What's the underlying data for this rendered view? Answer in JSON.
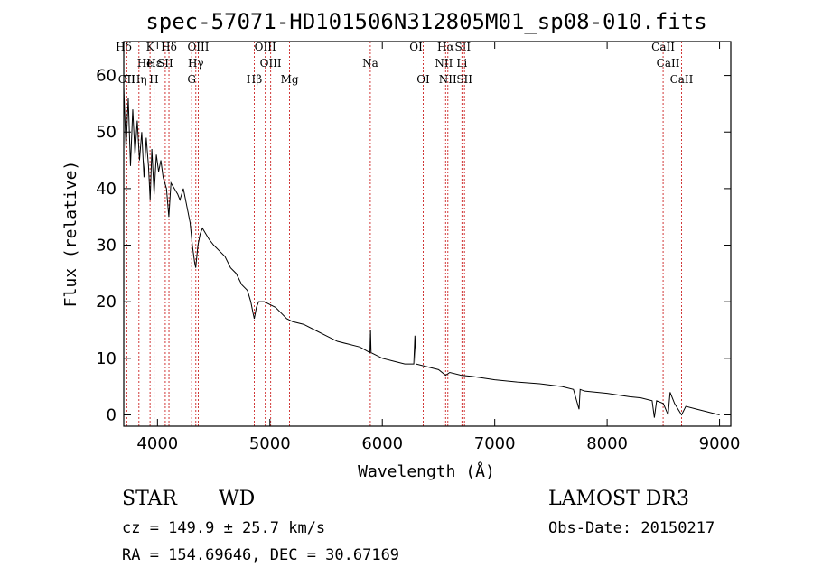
{
  "chart_data": {
    "type": "line",
    "title": "spec-57071-HD101506N312805M01_sp08-010.fits",
    "xlabel": "Wavelength (Å)",
    "ylabel": "Flux (relative)",
    "xlim": [
      3700,
      9100
    ],
    "ylim": [
      -2,
      66
    ],
    "xticks": [
      4000,
      5000,
      6000,
      7000,
      8000,
      9000
    ],
    "yticks": [
      0,
      10,
      20,
      30,
      40,
      50,
      60
    ],
    "series": [
      {
        "name": "spectrum",
        "points": [
          [
            3700,
            58
          ],
          [
            3720,
            47
          ],
          [
            3740,
            56
          ],
          [
            3760,
            44
          ],
          [
            3780,
            54
          ],
          [
            3800,
            46
          ],
          [
            3820,
            52
          ],
          [
            3840,
            45
          ],
          [
            3860,
            50
          ],
          [
            3880,
            42
          ],
          [
            3900,
            49
          ],
          [
            3920,
            44
          ],
          [
            3935,
            38
          ],
          [
            3950,
            47
          ],
          [
            3970,
            39
          ],
          [
            3990,
            46
          ],
          [
            4010,
            43
          ],
          [
            4030,
            45
          ],
          [
            4050,
            42
          ],
          [
            4080,
            40
          ],
          [
            4101,
            35
          ],
          [
            4120,
            41
          ],
          [
            4150,
            40
          ],
          [
            4180,
            39
          ],
          [
            4200,
            38
          ],
          [
            4230,
            40
          ],
          [
            4260,
            37
          ],
          [
            4290,
            34
          ],
          [
            4310,
            30
          ],
          [
            4330,
            27
          ],
          [
            4340,
            26
          ],
          [
            4360,
            30
          ],
          [
            4380,
            32
          ],
          [
            4400,
            33
          ],
          [
            4430,
            32
          ],
          [
            4460,
            31
          ],
          [
            4500,
            30
          ],
          [
            4550,
            29
          ],
          [
            4600,
            28
          ],
          [
            4650,
            26
          ],
          [
            4700,
            25
          ],
          [
            4750,
            23
          ],
          [
            4800,
            22
          ],
          [
            4830,
            20
          ],
          [
            4850,
            18
          ],
          [
            4861,
            17
          ],
          [
            4880,
            19
          ],
          [
            4900,
            20
          ],
          [
            4950,
            20
          ],
          [
            5000,
            19.5
          ],
          [
            5050,
            19
          ],
          [
            5100,
            18
          ],
          [
            5150,
            17
          ],
          [
            5200,
            16.5
          ],
          [
            5300,
            16
          ],
          [
            5400,
            15
          ],
          [
            5500,
            14
          ],
          [
            5600,
            13
          ],
          [
            5700,
            12.5
          ],
          [
            5800,
            12
          ],
          [
            5890,
            11
          ],
          [
            5895,
            15
          ],
          [
            5900,
            11
          ],
          [
            6000,
            10
          ],
          [
            6100,
            9.5
          ],
          [
            6200,
            9
          ],
          [
            6280,
            9
          ],
          [
            6290,
            14
          ],
          [
            6300,
            9
          ],
          [
            6400,
            8.5
          ],
          [
            6500,
            8
          ],
          [
            6563,
            7
          ],
          [
            6600,
            7.5
          ],
          [
            6700,
            7
          ],
          [
            6800,
            6.8
          ],
          [
            6900,
            6.5
          ],
          [
            7000,
            6.2
          ],
          [
            7200,
            5.8
          ],
          [
            7400,
            5.5
          ],
          [
            7600,
            5
          ],
          [
            7700,
            4.5
          ],
          [
            7750,
            1
          ],
          [
            7760,
            4.5
          ],
          [
            7800,
            4.2
          ],
          [
            7900,
            4
          ],
          [
            8000,
            3.8
          ],
          [
            8100,
            3.5
          ],
          [
            8200,
            3.2
          ],
          [
            8300,
            3
          ],
          [
            8400,
            2.5
          ],
          [
            8420,
            -0.5
          ],
          [
            8440,
            2.5
          ],
          [
            8500,
            2
          ],
          [
            8542,
            0
          ],
          [
            8560,
            4
          ],
          [
            8600,
            2
          ],
          [
            8662,
            0
          ],
          [
            8700,
            1.5
          ],
          [
            8800,
            1
          ],
          [
            8900,
            0.5
          ],
          [
            9000,
            0
          ]
        ]
      }
    ],
    "spectral_lines": [
      {
        "label": "Hδ",
        "wave": 3700,
        "row": 1
      },
      {
        "label": "OII",
        "wave": 3727,
        "row": 3
      },
      {
        "label": "Hε",
        "wave": 3970,
        "row": 2
      },
      {
        "label": "He",
        "wave": 3889,
        "row": 2
      },
      {
        "label": "Hη",
        "wave": 3835,
        "row": 3
      },
      {
        "label": "K",
        "wave": 3934,
        "row": 1
      },
      {
        "label": "H",
        "wave": 3969,
        "row": 3
      },
      {
        "label": "SII",
        "wave": 4069,
        "row": 2
      },
      {
        "label": "Hδ",
        "wave": 4102,
        "row": 1
      },
      {
        "label": "OIII",
        "wave": 4363,
        "row": 1
      },
      {
        "label": "Hγ",
        "wave": 4341,
        "row": 2
      },
      {
        "label": "G",
        "wave": 4304,
        "row": 3
      },
      {
        "label": "Hβ",
        "wave": 4861,
        "row": 3
      },
      {
        "label": "OIII",
        "wave": 4959,
        "row": 1
      },
      {
        "label": "OIII",
        "wave": 5007,
        "row": 2
      },
      {
        "label": "Mg",
        "wave": 5175,
        "row": 3
      },
      {
        "label": "Na",
        "wave": 5893,
        "row": 2
      },
      {
        "label": "OI",
        "wave": 6300,
        "row": 1
      },
      {
        "label": "OI",
        "wave": 6364,
        "row": 3
      },
      {
        "label": "Hα",
        "wave": 6563,
        "row": 1
      },
      {
        "label": "NII",
        "wave": 6548,
        "row": 2
      },
      {
        "label": "NII",
        "wave": 6583,
        "row": 3
      },
      {
        "label": "SII",
        "wave": 6716,
        "row": 1
      },
      {
        "label": "Li",
        "wave": 6708,
        "row": 2
      },
      {
        "label": "SII",
        "wave": 6731,
        "row": 3
      },
      {
        "label": "CaII",
        "wave": 8498,
        "row": 1
      },
      {
        "label": "CaII",
        "wave": 8542,
        "row": 2
      },
      {
        "label": "CaII",
        "wave": 8662,
        "row": 3
      }
    ]
  },
  "info": {
    "class": "STAR",
    "subclass": "WD",
    "survey": "LAMOST DR3",
    "cz": "cz = 149.9 ± 25.7 km/s",
    "obs_date": "Obs-Date: 20150217",
    "coords": "RA = 154.69646, DEC =  30.67169"
  }
}
